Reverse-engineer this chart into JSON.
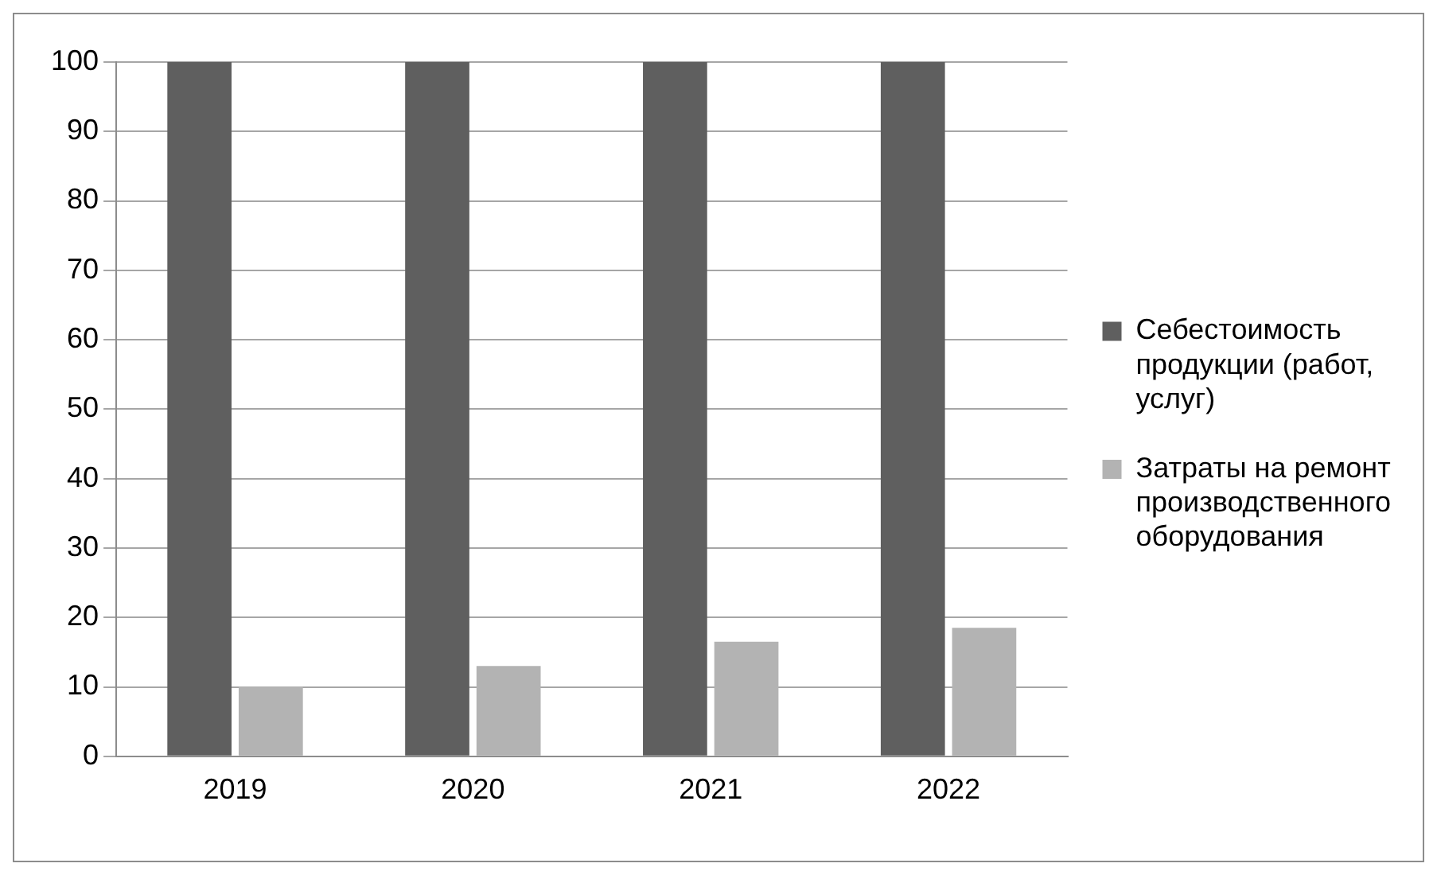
{
  "chart_data": {
    "type": "bar",
    "categories": [
      "2019",
      "2020",
      "2021",
      "2022"
    ],
    "series": [
      {
        "name": "Себестоимость продукции (работ, услуг)",
        "color": "#5f5f5f",
        "values": [
          100,
          100,
          100,
          100
        ]
      },
      {
        "name": "Затраты на ремонт производственного оборудования",
        "color": "#b3b3b3",
        "values": [
          10,
          13,
          16.5,
          18.5
        ]
      }
    ],
    "ylim": [
      0,
      100
    ],
    "yticks": [
      0,
      10,
      20,
      30,
      40,
      50,
      60,
      70,
      80,
      90,
      100
    ],
    "grid": "y",
    "legend": "right"
  }
}
